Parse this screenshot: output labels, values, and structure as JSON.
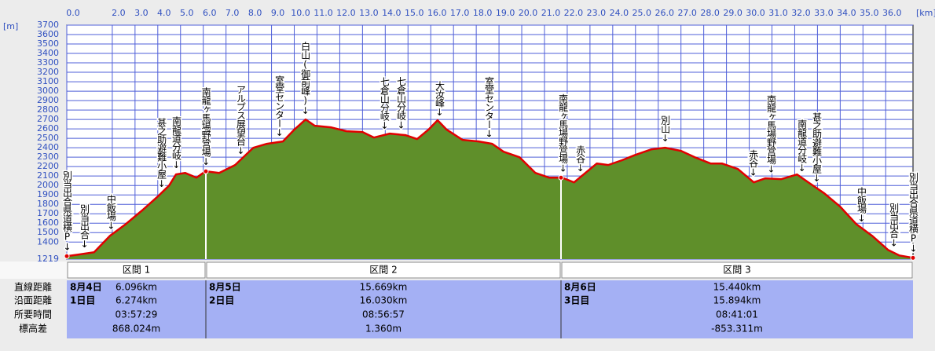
{
  "chart_data": {
    "type": "area",
    "x_label": "[km]",
    "y_label": "[m]",
    "x": [
      0,
      0.5,
      1.2,
      1.9,
      2.6,
      3.3,
      4.0,
      4.5,
      4.8,
      5.2,
      5.7,
      6.1,
      6.7,
      7.4,
      8.2,
      8.8,
      9.5,
      10.0,
      10.5,
      10.9,
      11.6,
      12.3,
      13.0,
      13.5,
      14.2,
      14.9,
      15.4,
      15.9,
      16.3,
      16.7,
      17.4,
      18.1,
      18.7,
      19.2,
      19.9,
      20.6,
      21.2,
      21.77,
      22.3,
      22.8,
      23.3,
      23.8,
      24.4,
      25.0,
      25.7,
      26.3,
      27.0,
      27.6,
      28.3,
      28.8,
      29.5,
      30.2,
      30.7,
      31.4,
      32.1,
      32.6,
      33.3,
      34.0,
      34.7,
      35.4,
      36.1,
      36.6,
      37.2
    ],
    "values": [
      1250,
      1267,
      1292,
      1467,
      1592,
      1733,
      1883,
      2000,
      2117,
      2133,
      2083,
      2150,
      2133,
      2217,
      2400,
      2442,
      2467,
      2592,
      2700,
      2633,
      2617,
      2575,
      2567,
      2508,
      2550,
      2533,
      2492,
      2592,
      2692,
      2592,
      2483,
      2467,
      2442,
      2358,
      2300,
      2133,
      2083,
      2083,
      2033,
      2133,
      2233,
      2217,
      2267,
      2325,
      2383,
      2400,
      2367,
      2300,
      2233,
      2233,
      2175,
      2033,
      2075,
      2067,
      2117,
      2033,
      1917,
      1775,
      1592,
      1467,
      1317,
      1258,
      1233
    ],
    "color": "#e00000",
    "fill": "#5f8f2a",
    "xlim": [
      0,
      37.2
    ],
    "ylim": [
      1219,
      3700
    ],
    "xticks": [
      {
        "value": 0,
        "label": "0.0"
      },
      {
        "value": 2,
        "label": "2.0"
      },
      {
        "value": 3,
        "label": "3.0"
      },
      {
        "value": 4,
        "label": "4.0"
      },
      {
        "value": 5,
        "label": "5.0"
      },
      {
        "value": 6,
        "label": "6.0"
      },
      {
        "value": 7,
        "label": "7.0"
      },
      {
        "value": 8,
        "label": "8.0"
      },
      {
        "value": 9,
        "label": "9.0"
      },
      {
        "value": 10,
        "label": "10.0"
      },
      {
        "value": 11,
        "label": "11.0"
      },
      {
        "value": 12,
        "label": "12.0"
      },
      {
        "value": 13,
        "label": "13.0"
      },
      {
        "value": 14,
        "label": "14.0"
      },
      {
        "value": 15,
        "label": "15.0"
      },
      {
        "value": 16,
        "label": "16.0"
      },
      {
        "value": 17,
        "label": "17.0"
      },
      {
        "value": 18,
        "label": "18.0"
      },
      {
        "value": 19,
        "label": "19.0"
      },
      {
        "value": 20,
        "label": "20.0"
      },
      {
        "value": 21,
        "label": "21.0"
      },
      {
        "value": 22,
        "label": "22.0"
      },
      {
        "value": 23,
        "label": "23.0"
      },
      {
        "value": 24,
        "label": "24.0"
      },
      {
        "value": 25,
        "label": "25.0"
      },
      {
        "value": 26,
        "label": "26.0"
      },
      {
        "value": 27,
        "label": "27.0"
      },
      {
        "value": 28,
        "label": "28.0"
      },
      {
        "value": 29,
        "label": "29.0"
      },
      {
        "value": 30,
        "label": "30.0"
      },
      {
        "value": 31,
        "label": "31.0"
      },
      {
        "value": 32,
        "label": "32.0"
      },
      {
        "value": 33,
        "label": "33.0"
      },
      {
        "value": 34,
        "label": "34.0"
      },
      {
        "value": 35,
        "label": "35.0"
      },
      {
        "value": 36,
        "label": "36.0"
      }
    ],
    "yticks": [
      1219,
      1400,
      1500,
      1600,
      1700,
      1800,
      1900,
      2000,
      2100,
      2200,
      2300,
      2400,
      2500,
      2600,
      2700,
      2800,
      2900,
      3000,
      3100,
      3200,
      3300,
      3400,
      3500,
      3600,
      3700
    ],
    "grid": true,
    "annotations": [
      {
        "text": "別当出合県道横P↓",
        "x": 0
      },
      {
        "text": "別当出合↓",
        "x": 0.76
      },
      {
        "text": "中飯場↓",
        "x": 1.93
      },
      {
        "text": "甚之助避難小屋↓",
        "x": 4.15
      },
      {
        "text": "南龍道分岐↓",
        "x": 4.8
      },
      {
        "text": "南龍ヶ馬場野営場↓",
        "x": 6.1
      },
      {
        "text": "アルプス展望台↓",
        "x": 7.63
      },
      {
        "text": "室堂センター↓",
        "x": 9.33
      },
      {
        "text": "白山(御前峰)↓",
        "x": 10.47
      },
      {
        "text": "七倉山分岐↓",
        "x": 13.95
      },
      {
        "text": "七倉山分岐↓",
        "x": 14.68
      },
      {
        "text": "大汝峰↓",
        "x": 16.37
      },
      {
        "text": "室堂センター↓",
        "x": 18.55
      },
      {
        "text": "南龍ヶ馬場野営場↓",
        "x": 21.8
      },
      {
        "text": "赤谷↓",
        "x": 22.56
      },
      {
        "text": "別山↓",
        "x": 26.29
      },
      {
        "text": "赤谷↓",
        "x": 30.16
      },
      {
        "text": "南龍ヶ馬場野営場↓",
        "x": 30.95
      },
      {
        "text": "南龍道分岐↓",
        "x": 32.3
      },
      {
        "text": "甚之助避難小屋↓",
        "x": 32.95
      },
      {
        "text": "中飯場↓",
        "x": 34.92
      },
      {
        "text": "別当出合↓",
        "x": 36.34
      },
      {
        "text": "別当出合県道横P↓",
        "x": 37.2
      }
    ]
  },
  "summary": {
    "row_labels": [
      "直線距離",
      "沿面距離",
      "所要時間",
      "標高差"
    ],
    "sections": [
      {
        "name": "区間 1",
        "date": "8月4日",
        "day": "1日目",
        "values": [
          "6.096km",
          "6.274km",
          "03:57:29",
          "868.024m"
        ]
      },
      {
        "name": "区間 2",
        "date": "8月5日",
        "day": "2日目",
        "values": [
          "15.669km",
          "16.030km",
          "08:56:57",
          "1.360m"
        ]
      },
      {
        "name": "区間 3",
        "date": "8月6日",
        "day": "3日目",
        "values": [
          "15.440km",
          "15.894km",
          "08:41:01",
          "-853.311m"
        ]
      }
    ]
  }
}
